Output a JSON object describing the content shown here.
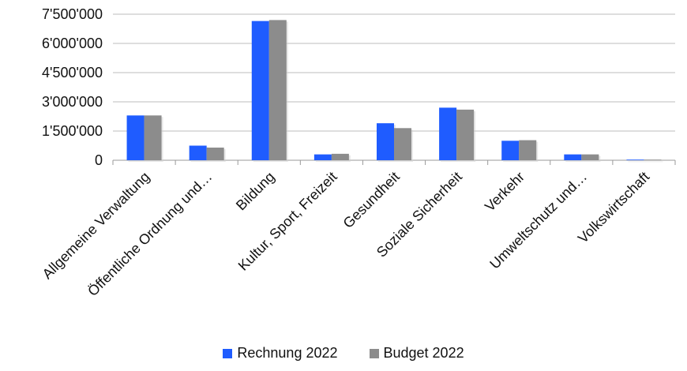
{
  "chart_data": {
    "type": "bar",
    "categories": [
      "Allgemeine Verwaltung",
      "Öffentliche Ordnung und…",
      "Bildung",
      "Kultur, Sport, Freizeit",
      "Gesundheit",
      "Soziale Sicherheit",
      "Verkehr",
      "Umweltschutz und…",
      "Volkswirtschaft"
    ],
    "series": [
      {
        "name": "Rechnung 2022",
        "color": "#1f5cff",
        "values": [
          2300000,
          750000,
          7150000,
          300000,
          1900000,
          2700000,
          1000000,
          300000,
          20000
        ]
      },
      {
        "name": "Budget 2022",
        "color": "#8c8c8c",
        "values": [
          2300000,
          650000,
          7200000,
          330000,
          1650000,
          2600000,
          1030000,
          300000,
          20000
        ]
      }
    ],
    "ylim": [
      0,
      7500000
    ],
    "yticks": [
      0,
      1500000,
      3000000,
      4500000,
      6000000,
      7500000
    ],
    "ytick_labels": [
      "0",
      "1'500'000",
      "3'000'000",
      "4'500'000",
      "6'000'000",
      "7'500'000"
    ],
    "grid": true,
    "legend_position": "bottom"
  }
}
